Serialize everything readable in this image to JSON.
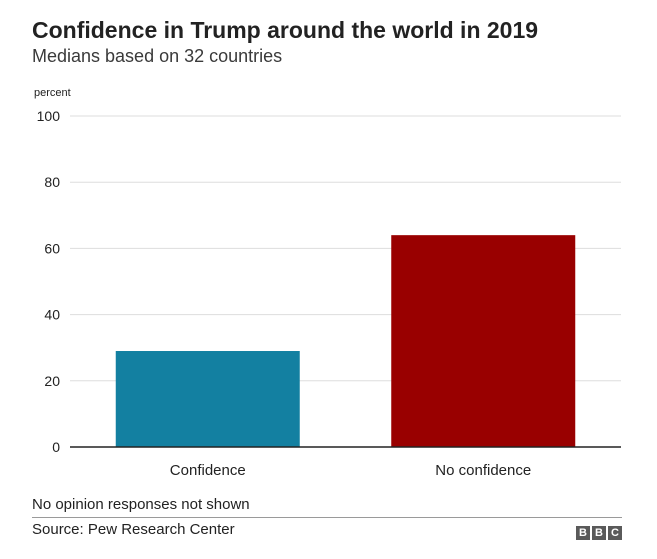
{
  "header": {
    "title": "Confidence in Trump around the world in 2019",
    "subtitle": "Medians based on 32 countries"
  },
  "chart_data": {
    "type": "bar",
    "categories": [
      "Confidence",
      "No confidence"
    ],
    "values": [
      29,
      64
    ],
    "colors": [
      "#1380A1",
      "#990000"
    ],
    "ylabel": "percent",
    "ylim": [
      0,
      100
    ],
    "yticks": [
      0,
      20,
      40,
      60,
      80,
      100
    ],
    "grid": true
  },
  "footer": {
    "note": "No opinion responses not shown",
    "source": "Source: Pew Research Center",
    "logo_letters": [
      "B",
      "B",
      "C"
    ]
  }
}
